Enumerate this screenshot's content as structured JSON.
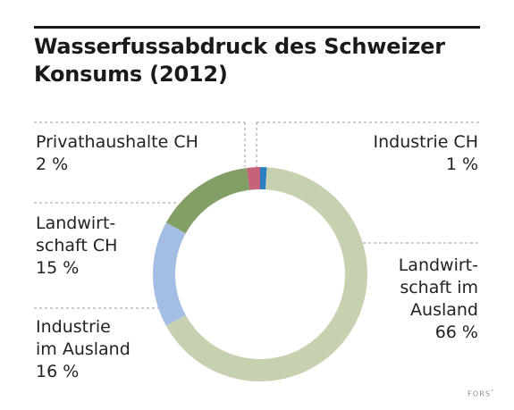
{
  "title_lines": [
    "Wasserfussabdruck des Schweizer",
    "Konsums (2012)"
  ],
  "chart_data": {
    "type": "pie",
    "variant": "donut",
    "title": "Wasserfussabdruck des Schweizer Konsums (2012)",
    "unit": "%",
    "start": "top, clockwise",
    "slices": [
      {
        "label": "Industrie CH",
        "label_lines": [
          "Industrie CH"
        ],
        "value": 1,
        "value_text": "1 %",
        "color": "#2b7ec2"
      },
      {
        "label": "Landwirtschaft im Ausland",
        "label_lines": [
          "Landwirt-",
          "schaft im",
          "Ausland"
        ],
        "value": 66,
        "value_text": "66 %",
        "color": "#c6d1b0"
      },
      {
        "label": "Industrie im Ausland",
        "label_lines": [
          "Industrie",
          "im Ausland"
        ],
        "value": 16,
        "value_text": "16 %",
        "color": "#a3bde4"
      },
      {
        "label": "Landwirtschaft CH",
        "label_lines": [
          "Landwirt-",
          "schaft CH"
        ],
        "value": 15,
        "value_text": "15 %",
        "color": "#82a065"
      },
      {
        "label": "Privathaushalte CH",
        "label_lines": [
          "Privathaushalte CH"
        ],
        "value": 2,
        "value_text": "2 %",
        "color": "#c4637a"
      }
    ]
  },
  "source_logo": {
    "text": "FORS",
    "mark": "°"
  }
}
